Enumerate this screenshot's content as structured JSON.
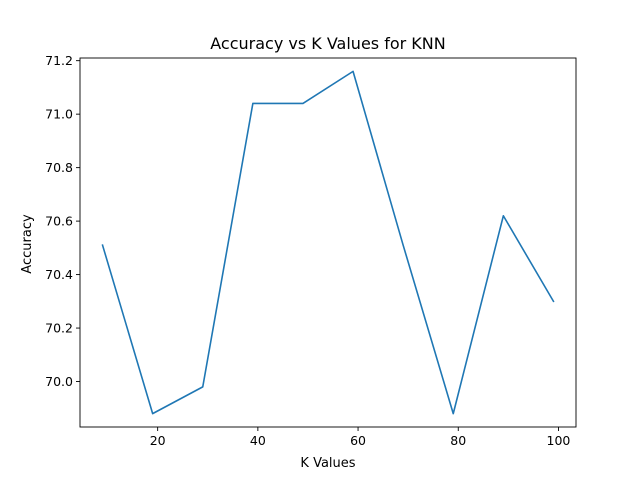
{
  "chart_data": {
    "type": "line",
    "title": "Accuracy vs K Values for KNN",
    "xlabel": "K Values",
    "ylabel": "Accuracy",
    "xlim": [
      4.5,
      103.5
    ],
    "ylim": [
      69.83,
      71.21
    ],
    "xticks": [
      20,
      40,
      60,
      80,
      100
    ],
    "xtick_labels": [
      "20",
      "40",
      "60",
      "80",
      "100"
    ],
    "yticks": [
      70.0,
      70.2,
      70.4,
      70.6,
      70.8,
      71.0,
      71.2
    ],
    "ytick_labels": [
      "70.0",
      "70.2",
      "70.4",
      "70.6",
      "70.8",
      "71.0",
      "71.2"
    ],
    "grid": false,
    "legend": "none",
    "series": [
      {
        "color": "#1f77b4",
        "x": [
          9,
          19,
          29,
          39,
          49,
          59,
          69,
          79,
          89,
          99
        ],
        "y": [
          70.51,
          69.88,
          69.98,
          71.04,
          71.04,
          71.16,
          70.51,
          69.88,
          70.62,
          70.3
        ]
      }
    ]
  }
}
